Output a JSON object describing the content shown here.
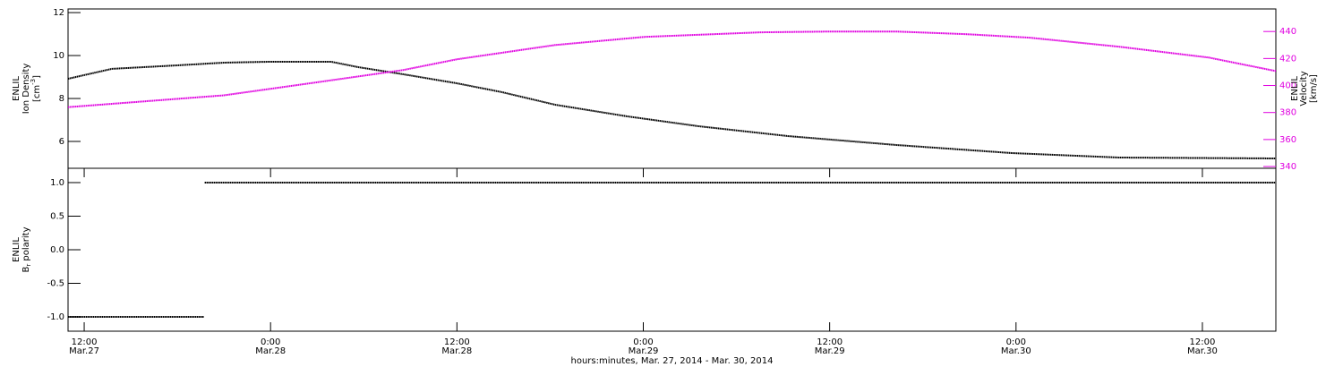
{
  "chart_data": [
    {
      "type": "line",
      "xlim": [
        10.96,
        88.73
      ],
      "ylim": [
        4.75,
        12.17
      ],
      "yticks": [
        6,
        8,
        10,
        12
      ],
      "y2lim": [
        338.7,
        456.7
      ],
      "y2ticks": [
        340,
        360,
        380,
        400,
        420,
        440
      ],
      "ylabel": {
        "name": "ENLIL",
        "text": "Ion Density",
        "unit": "[cm",
        "sup": "-3",
        "close": "]"
      },
      "y2label": {
        "name": "ENLIL",
        "text": "Velocity",
        "unit": "[km/s]"
      },
      "y2color": "#e000e0",
      "series": [
        {
          "color": "#000000",
          "x": [
            10.96,
            13.78,
            18.11,
            20.99,
            23.87,
            27.91,
            29.64,
            32.52,
            35.98,
            38.86,
            42.32,
            46.93,
            51.55,
            57.31,
            64.23,
            71.72,
            78.64,
            88.73
          ],
          "values": [
            8.92,
            9.38,
            9.55,
            9.67,
            9.71,
            9.71,
            9.46,
            9.13,
            8.71,
            8.3,
            7.71,
            7.17,
            6.71,
            6.25,
            5.84,
            5.46,
            5.25,
            5.21
          ]
        },
        {
          "color": "#e000e0",
          "axis": "y2",
          "x": [
            10.96,
            20.99,
            26.76,
            32.52,
            35.98,
            42.32,
            48.09,
            55.58,
            60.19,
            64.23,
            68.84,
            72.88,
            78.64,
            84.41,
            88.73
          ],
          "values": [
            384,
            392.7,
            402,
            411.4,
            419.4,
            430,
            436,
            439.4,
            440,
            440,
            438,
            435.4,
            428.7,
            420.7,
            410.7
          ]
        }
      ]
    },
    {
      "type": "line",
      "xlim": [
        10.96,
        88.73
      ],
      "xticks": [
        {
          "value": 12,
          "label": "12:00",
          "sublabel": "Mar.27"
        },
        {
          "value": 24,
          "label": "0:00",
          "sublabel": "Mar.28"
        },
        {
          "value": 36,
          "label": "12:00",
          "sublabel": "Mar.28"
        },
        {
          "value": 48,
          "label": "0:00",
          "sublabel": "Mar.29"
        },
        {
          "value": 60,
          "label": "12:00",
          "sublabel": "Mar.29"
        },
        {
          "value": 72,
          "label": "0:00",
          "sublabel": "Mar.30"
        },
        {
          "value": 84,
          "label": "12:00",
          "sublabel": "Mar.30"
        }
      ],
      "xlabel": "hours:minutes, Mar. 27, 2014 - Mar. 30, 2014",
      "ylim": [
        -1.213,
        1.213
      ],
      "yticks": [
        {
          "value": -1,
          "label": "-1.0"
        },
        {
          "value": -0.5,
          "label": "-0.5"
        },
        {
          "value": 0,
          "label": "0.0"
        },
        {
          "value": 0.5,
          "label": "0.5"
        },
        {
          "value": 1,
          "label": "1.0"
        }
      ],
      "ylabel": {
        "name": "ENLIL",
        "symbol": "B",
        "sub": "r",
        "text": "polarity"
      },
      "series": [
        {
          "color": "#000000",
          "x": [
            10.96,
            19.72,
            19.74,
            19.76,
            88.73
          ],
          "values": [
            -1,
            -1,
            null,
            1,
            1
          ]
        }
      ]
    }
  ]
}
